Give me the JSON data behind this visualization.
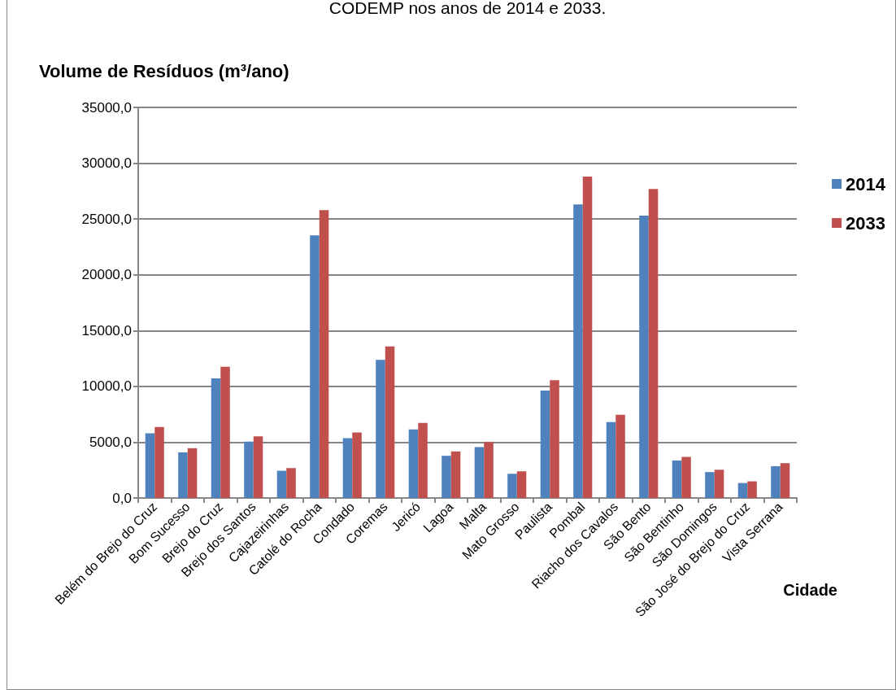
{
  "chart_data": {
    "type": "bar",
    "title": "CODEMP nos anos de 2014 e 2033.",
    "ylabel": "Volume de Resíduos (m³/ano)",
    "xlabel": "Cidade",
    "categories": [
      "Belém do Brejo do Cruz",
      "Bom Sucesso",
      "Brejo do Cruz",
      "Brejo dos Santos",
      "Cajazeirinhas",
      "Catolé do Rocha",
      "Condado",
      "Coremas",
      "Jericó",
      "Lagoa",
      "Malta",
      "Mato Grosso",
      "Paulista",
      "Pombal",
      "Riacho dos Cavalos",
      "São Bento",
      "São Bentinho",
      "São Domingos",
      "São José do Brejo do Cruz",
      "Vista Serrana"
    ],
    "series": [
      {
        "name": "2014",
        "color": "#4f81bd",
        "values": [
          5800,
          4090,
          10720,
          5050,
          2440,
          23540,
          5360,
          12380,
          6140,
          3780,
          4560,
          2170,
          9630,
          26300,
          6800,
          25300,
          3360,
          2320,
          1340,
          2850
        ]
      },
      {
        "name": "2033",
        "color": "#c0504d",
        "values": [
          6360,
          4460,
          11750,
          5530,
          2680,
          25790,
          5870,
          13580,
          6730,
          4170,
          5020,
          2390,
          10550,
          28810,
          7460,
          27690,
          3680,
          2530,
          1490,
          3120
        ]
      }
    ],
    "ylim": [
      0,
      35000
    ],
    "yticks": [
      {
        "value": 0,
        "label": "0,0"
      },
      {
        "value": 5000,
        "label": "5000,0"
      },
      {
        "value": 10000,
        "label": "10000,0"
      },
      {
        "value": 15000,
        "label": "15000,0"
      },
      {
        "value": 20000,
        "label": "20000,0"
      },
      {
        "value": 25000,
        "label": "25000,0"
      },
      {
        "value": 30000,
        "label": "30000,0"
      },
      {
        "value": 35000,
        "label": "35000,0"
      }
    ],
    "grid": "y",
    "legend": "right"
  }
}
